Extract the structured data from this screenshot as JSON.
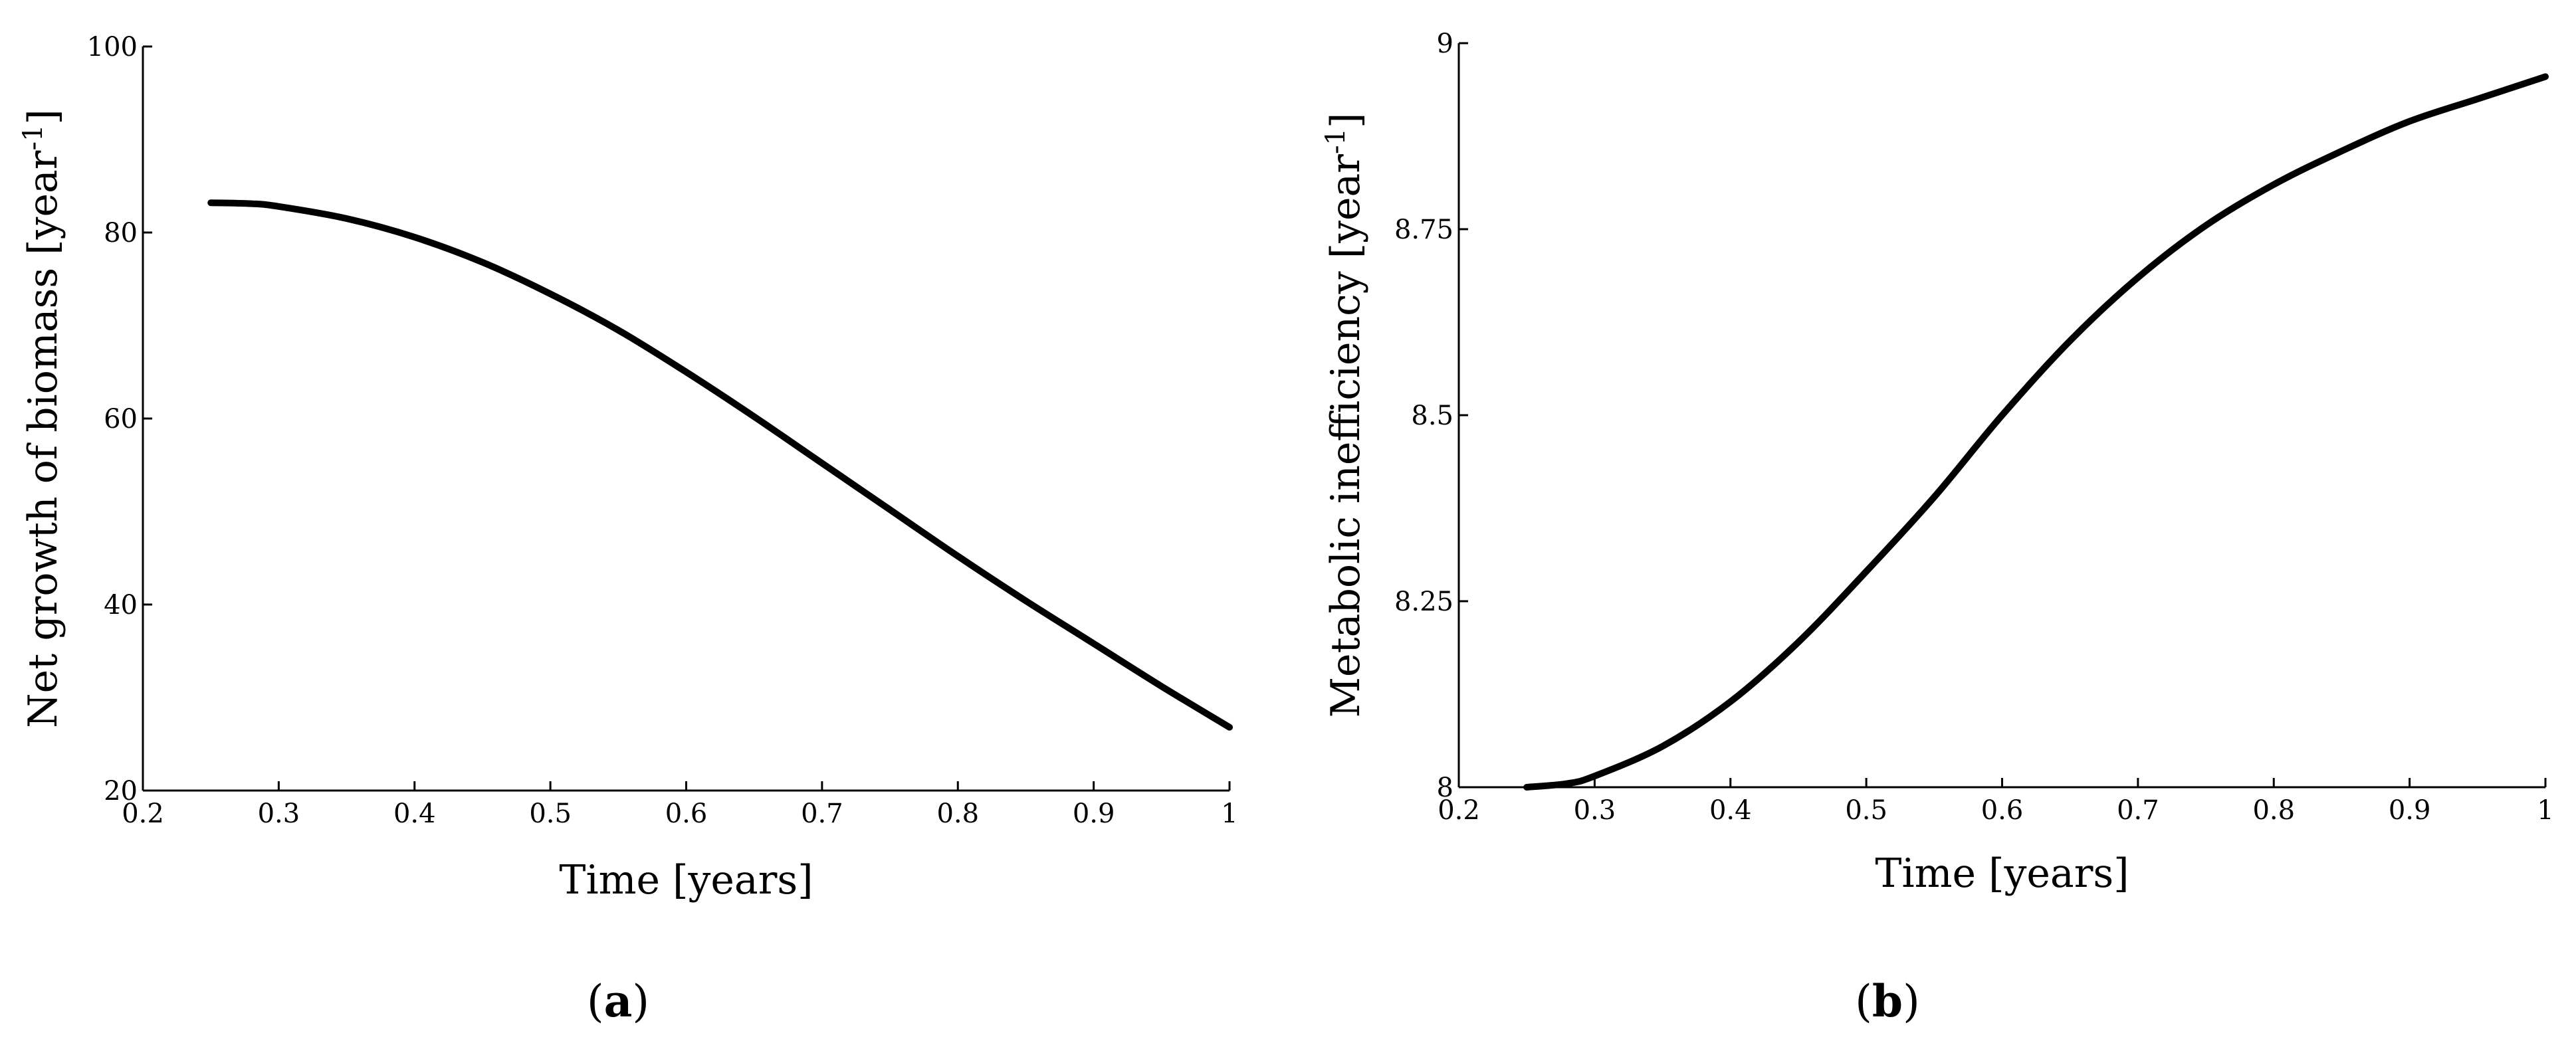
{
  "chart_data": [
    {
      "type": "line",
      "panel_label": {
        "open": "(",
        "letter": "a",
        "close": ")"
      },
      "xlabel": "Time [years]",
      "ylabel": "Net growth of biomass [year",
      "ylabel_sup": "-1",
      "ylabel_close": "]",
      "xlim": [
        0.2,
        1.0
      ],
      "ylim": [
        20,
        100
      ],
      "xticks": [
        0.2,
        0.3,
        0.4,
        0.5,
        0.6,
        0.7,
        0.8,
        0.9,
        1.0
      ],
      "xtick_labels": [
        "0.2",
        "0.3",
        "0.4",
        "0.5",
        "0.6",
        "0.7",
        "0.8",
        "0.9",
        "1"
      ],
      "yticks": [
        20,
        40,
        60,
        80,
        100
      ],
      "ytick_labels": [
        "20",
        "40",
        "60",
        "80",
        "100"
      ],
      "series": [
        {
          "x": [
            0.25,
            0.28,
            0.3,
            0.35,
            0.4,
            0.45,
            0.5,
            0.55,
            0.6,
            0.65,
            0.7,
            0.75,
            0.8,
            0.85,
            0.9,
            0.95,
            1.0
          ],
          "y": [
            83.2,
            83.1,
            82.8,
            81.5,
            79.5,
            76.8,
            73.4,
            69.5,
            65.0,
            60.2,
            55.2,
            50.2,
            45.2,
            40.4,
            35.8,
            31.2,
            26.8
          ]
        }
      ]
    },
    {
      "type": "line",
      "panel_label": {
        "open": "(",
        "letter": "b",
        "close": ")"
      },
      "xlabel": "Time [years]",
      "ylabel": "Metabolic inefficiency [year",
      "ylabel_sup": "-1",
      "ylabel_close": "]",
      "xlim": [
        0.2,
        1.0
      ],
      "ylim": [
        8,
        9
      ],
      "xticks": [
        0.2,
        0.3,
        0.4,
        0.5,
        0.6,
        0.7,
        0.8,
        0.9,
        1.0
      ],
      "xtick_labels": [
        "0.2",
        "0.3",
        "0.4",
        "0.5",
        "0.6",
        "0.7",
        "0.8",
        "0.9",
        "1"
      ],
      "yticks": [
        8,
        8.25,
        8.5,
        8.75,
        9
      ],
      "ytick_labels": [
        "8",
        "8.25",
        "8.5",
        "8.75",
        "9"
      ],
      "series": [
        {
          "x": [
            0.25,
            0.28,
            0.3,
            0.35,
            0.4,
            0.45,
            0.5,
            0.55,
            0.6,
            0.65,
            0.7,
            0.75,
            0.8,
            0.85,
            0.9,
            0.95,
            1.0
          ],
          "y": [
            8.0,
            8.005,
            8.015,
            8.055,
            8.115,
            8.195,
            8.29,
            8.39,
            8.5,
            8.6,
            8.685,
            8.755,
            8.81,
            8.855,
            8.895,
            8.925,
            8.955
          ]
        }
      ]
    }
  ]
}
